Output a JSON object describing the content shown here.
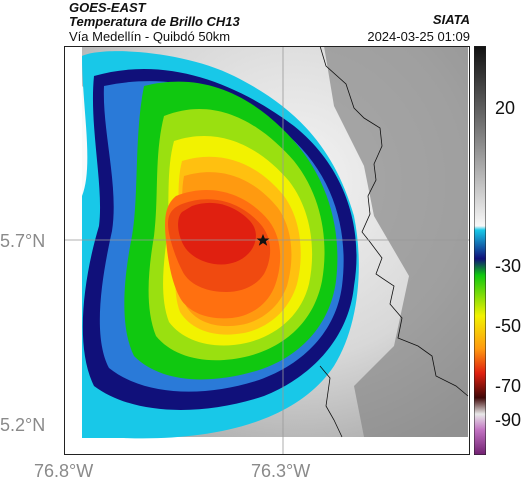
{
  "header": {
    "satellite": "GOES-EAST",
    "product": "Temperatura de Brillo CH13",
    "route": "Vía Medellín - Quibdó 50km",
    "agency": "SIATA",
    "timestamp": "2024-03-25 01:09"
  },
  "map": {
    "lat_ticks": [
      "5.7°N",
      "5.2°N"
    ],
    "lon_ticks": [
      "76.8°W",
      "76.3°W"
    ],
    "marker": "star-marker"
  },
  "colorbar": {
    "ticks": [
      "20",
      "-30",
      "-50",
      "-70",
      "-90"
    ],
    "unit_hidden": true
  },
  "colors": {
    "core": "#e02010",
    "orange": "#ff9a10",
    "yellow": "#f2f200",
    "green": "#10c810",
    "cyan": "#18c8e8",
    "deep_blue": "#10107a"
  }
}
